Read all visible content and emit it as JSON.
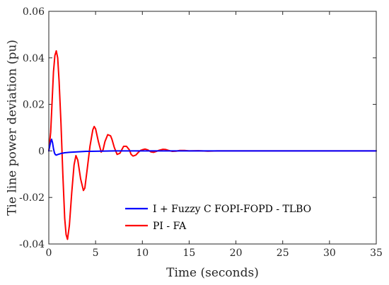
{
  "chart_data": {
    "type": "line",
    "xlabel": "Time (seconds)",
    "ylabel": "Tie line power deviation (pu)",
    "xlim": [
      0,
      35
    ],
    "ylim": [
      -0.04,
      0.06
    ],
    "xticks": [
      0,
      5,
      10,
      15,
      20,
      25,
      30,
      35
    ],
    "yticks": [
      -0.04,
      -0.02,
      0,
      0.02,
      0.04,
      0.06
    ],
    "xtick_labels": [
      "0",
      "5",
      "10",
      "15",
      "20",
      "25",
      "30",
      "35"
    ],
    "ytick_labels": [
      "-0.04",
      "-0.02",
      "0",
      "0.02",
      "0.04",
      "0.06"
    ],
    "grid": false,
    "legend_position": "bottom-center",
    "series": [
      {
        "name": "I + Fuzzy C FOPI-FOPD - TLBO",
        "color": "#0000ff",
        "x": [
          0,
          0.1,
          0.2,
          0.3,
          0.4,
          0.5,
          0.6,
          0.7,
          0.8,
          1.0,
          1.3,
          1.7,
          2.2,
          3.0,
          4.0,
          5.5,
          7.0,
          10.0,
          15.0,
          20.0,
          25.0,
          30.0,
          35.0
        ],
        "y": [
          0,
          0.002,
          0.004,
          0.005,
          0.0035,
          0.001,
          -0.0008,
          -0.0016,
          -0.0018,
          -0.0015,
          -0.0011,
          -0.0008,
          -0.0006,
          -0.0004,
          -0.0002,
          -0.0001,
          0,
          0,
          0,
          0,
          0,
          0,
          0
        ]
      },
      {
        "name": "PI - FA",
        "color": "#ff0000",
        "x": [
          0,
          0.2,
          0.35,
          0.5,
          0.65,
          0.8,
          0.95,
          1.1,
          1.3,
          1.5,
          1.7,
          1.85,
          2.0,
          2.2,
          2.45,
          2.7,
          2.9,
          3.1,
          3.4,
          3.7,
          3.85,
          4.1,
          4.4,
          4.7,
          4.85,
          5.0,
          5.3,
          5.6,
          5.8,
          6.0,
          6.3,
          6.6,
          6.75,
          7.0,
          7.3,
          7.6,
          7.8,
          8.0,
          8.3,
          8.6,
          8.8,
          9.0,
          9.3,
          9.6,
          9.8,
          10.0,
          10.3,
          10.6,
          10.9,
          11.2,
          11.5,
          11.8,
          12.2,
          12.5,
          12.8,
          13.2,
          13.6,
          14.0,
          14.5,
          15.0,
          16.0,
          17.0,
          18.0,
          20.0,
          22.0,
          25.0,
          30.0,
          35.0
        ],
        "y": [
          0,
          0.008,
          0.021,
          0.034,
          0.041,
          0.043,
          0.04,
          0.03,
          0.012,
          -0.01,
          -0.029,
          -0.036,
          -0.038,
          -0.032,
          -0.018,
          -0.006,
          -0.002,
          -0.004,
          -0.012,
          -0.017,
          -0.016,
          -0.008,
          0.002,
          0.009,
          0.0105,
          0.0095,
          0.004,
          -0.0005,
          0.0005,
          0.004,
          0.007,
          0.0065,
          0.005,
          0.0015,
          -0.0015,
          -0.001,
          0.0005,
          0.002,
          0.002,
          0.0005,
          -0.0015,
          -0.0022,
          -0.0018,
          -0.0005,
          0.0002,
          0.0005,
          0.0008,
          0.0004,
          -0.0004,
          -0.0006,
          -0.0002,
          0.0003,
          0.0007,
          0.0006,
          0.0002,
          -0.0002,
          -0.0001,
          0.0002,
          0.0002,
          0,
          0.0001,
          -0.0001,
          0,
          0,
          0,
          0,
          0,
          0
        ]
      }
    ]
  }
}
